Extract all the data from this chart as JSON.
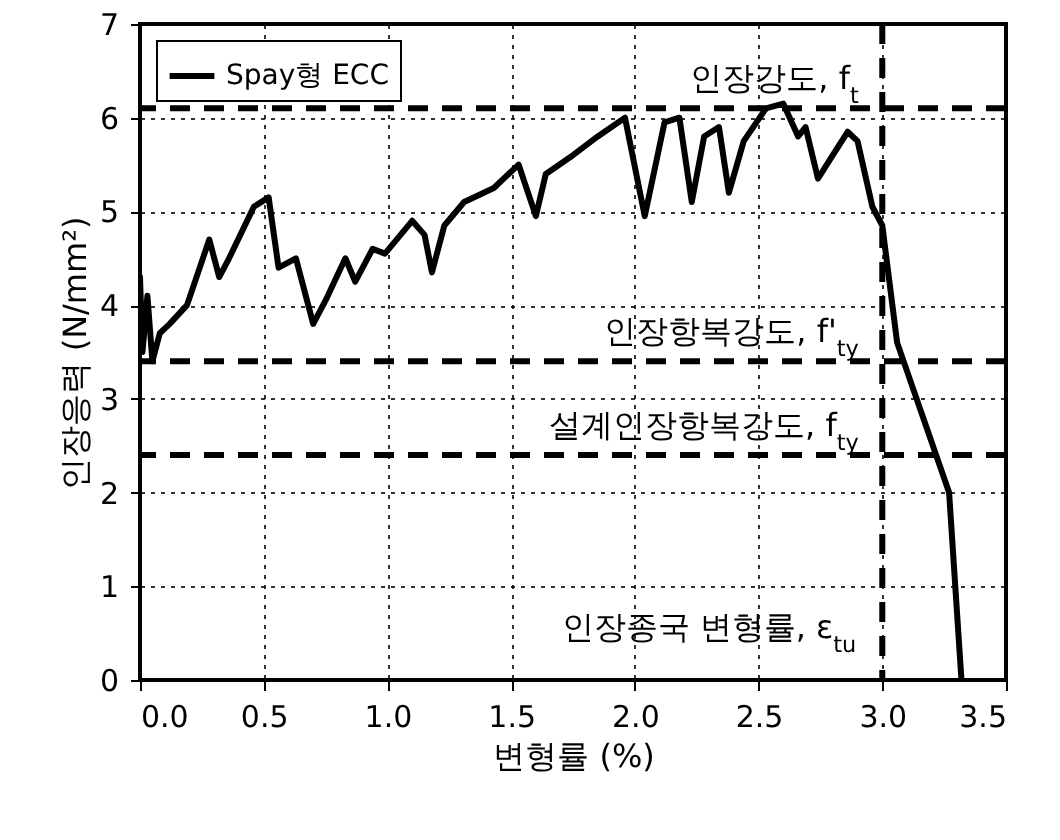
{
  "chart_data": {
    "type": "line",
    "xlabel": "변형률 (%)",
    "ylabel": "인장응력 (N/mm²)",
    "xlim": [
      0,
      3.5
    ],
    "ylim": [
      0,
      7
    ],
    "xticks": [
      {
        "value": 0,
        "label": "0.0"
      },
      {
        "value": 0.5,
        "label": "0.5"
      },
      {
        "value": 1,
        "label": "1.0"
      },
      {
        "value": 1.5,
        "label": "1.5"
      },
      {
        "value": 2,
        "label": "2.0"
      },
      {
        "value": 2.5,
        "label": "2.5"
      },
      {
        "value": 3,
        "label": "3.0"
      },
      {
        "value": 3.5,
        "label": "3.5"
      }
    ],
    "yticks": [
      0,
      1,
      2,
      3,
      4,
      5,
      6,
      7
    ],
    "grid": true,
    "legend": "top left",
    "line_style": "solid",
    "x": [
      0,
      0.01,
      0.03,
      0.05,
      0.08,
      0.12,
      0.19,
      0.28,
      0.32,
      0.36,
      0.46,
      0.52,
      0.56,
      0.63,
      0.7,
      0.75,
      0.83,
      0.87,
      0.94,
      0.99,
      1.1,
      1.15,
      1.18,
      1.23,
      1.31,
      1.43,
      1.53,
      1.6,
      1.64,
      1.75,
      1.85,
      1.96,
      2.04,
      2.12,
      2.18,
      2.23,
      2.28,
      2.34,
      2.38,
      2.44,
      2.53,
      2.6,
      2.66,
      2.69,
      2.74,
      2.8,
      2.86,
      2.9,
      2.96,
      3,
      3.06,
      3.27,
      3.32
    ],
    "series": [
      {
        "name": "Spay형 ECC",
        "color": "#000000",
        "values": [
          4.3,
          3.5,
          4.1,
          3.4,
          3.7,
          3.8,
          4.0,
          4.7,
          4.3,
          4.5,
          5.05,
          5.15,
          4.4,
          4.5,
          3.8,
          4.05,
          4.5,
          4.25,
          4.6,
          4.55,
          4.9,
          4.75,
          4.35,
          4.85,
          5.1,
          5.25,
          5.5,
          4.95,
          5.4,
          5.6,
          5.8,
          6.0,
          4.95,
          5.95,
          6.0,
          5.1,
          5.8,
          5.9,
          5.2,
          5.75,
          6.1,
          6.15,
          5.8,
          5.9,
          5.35,
          5.6,
          5.85,
          5.75,
          5.05,
          4.85,
          3.6,
          2.0,
          0
        ]
      }
    ],
    "ref_lines": [
      {
        "axis": "y",
        "value": 6.1,
        "label": "인장강도, f$_{t}$",
        "color": "#000000",
        "line_style": "dashed"
      },
      {
        "axis": "y",
        "value": 3.4,
        "label": "인장항복강도, f'$_{ty}$",
        "color": "#000000",
        "line_style": "dashed"
      },
      {
        "axis": "y",
        "value": 2.4,
        "label": "설계인장항복강도, f$_{ty}$",
        "color": "#000000",
        "line_style": "dashed"
      },
      {
        "axis": "x",
        "value": 3.0,
        "label": "인장종국 변형률, ε$_{tu}$",
        "color": "#000000",
        "line_style": "dashed"
      }
    ]
  }
}
